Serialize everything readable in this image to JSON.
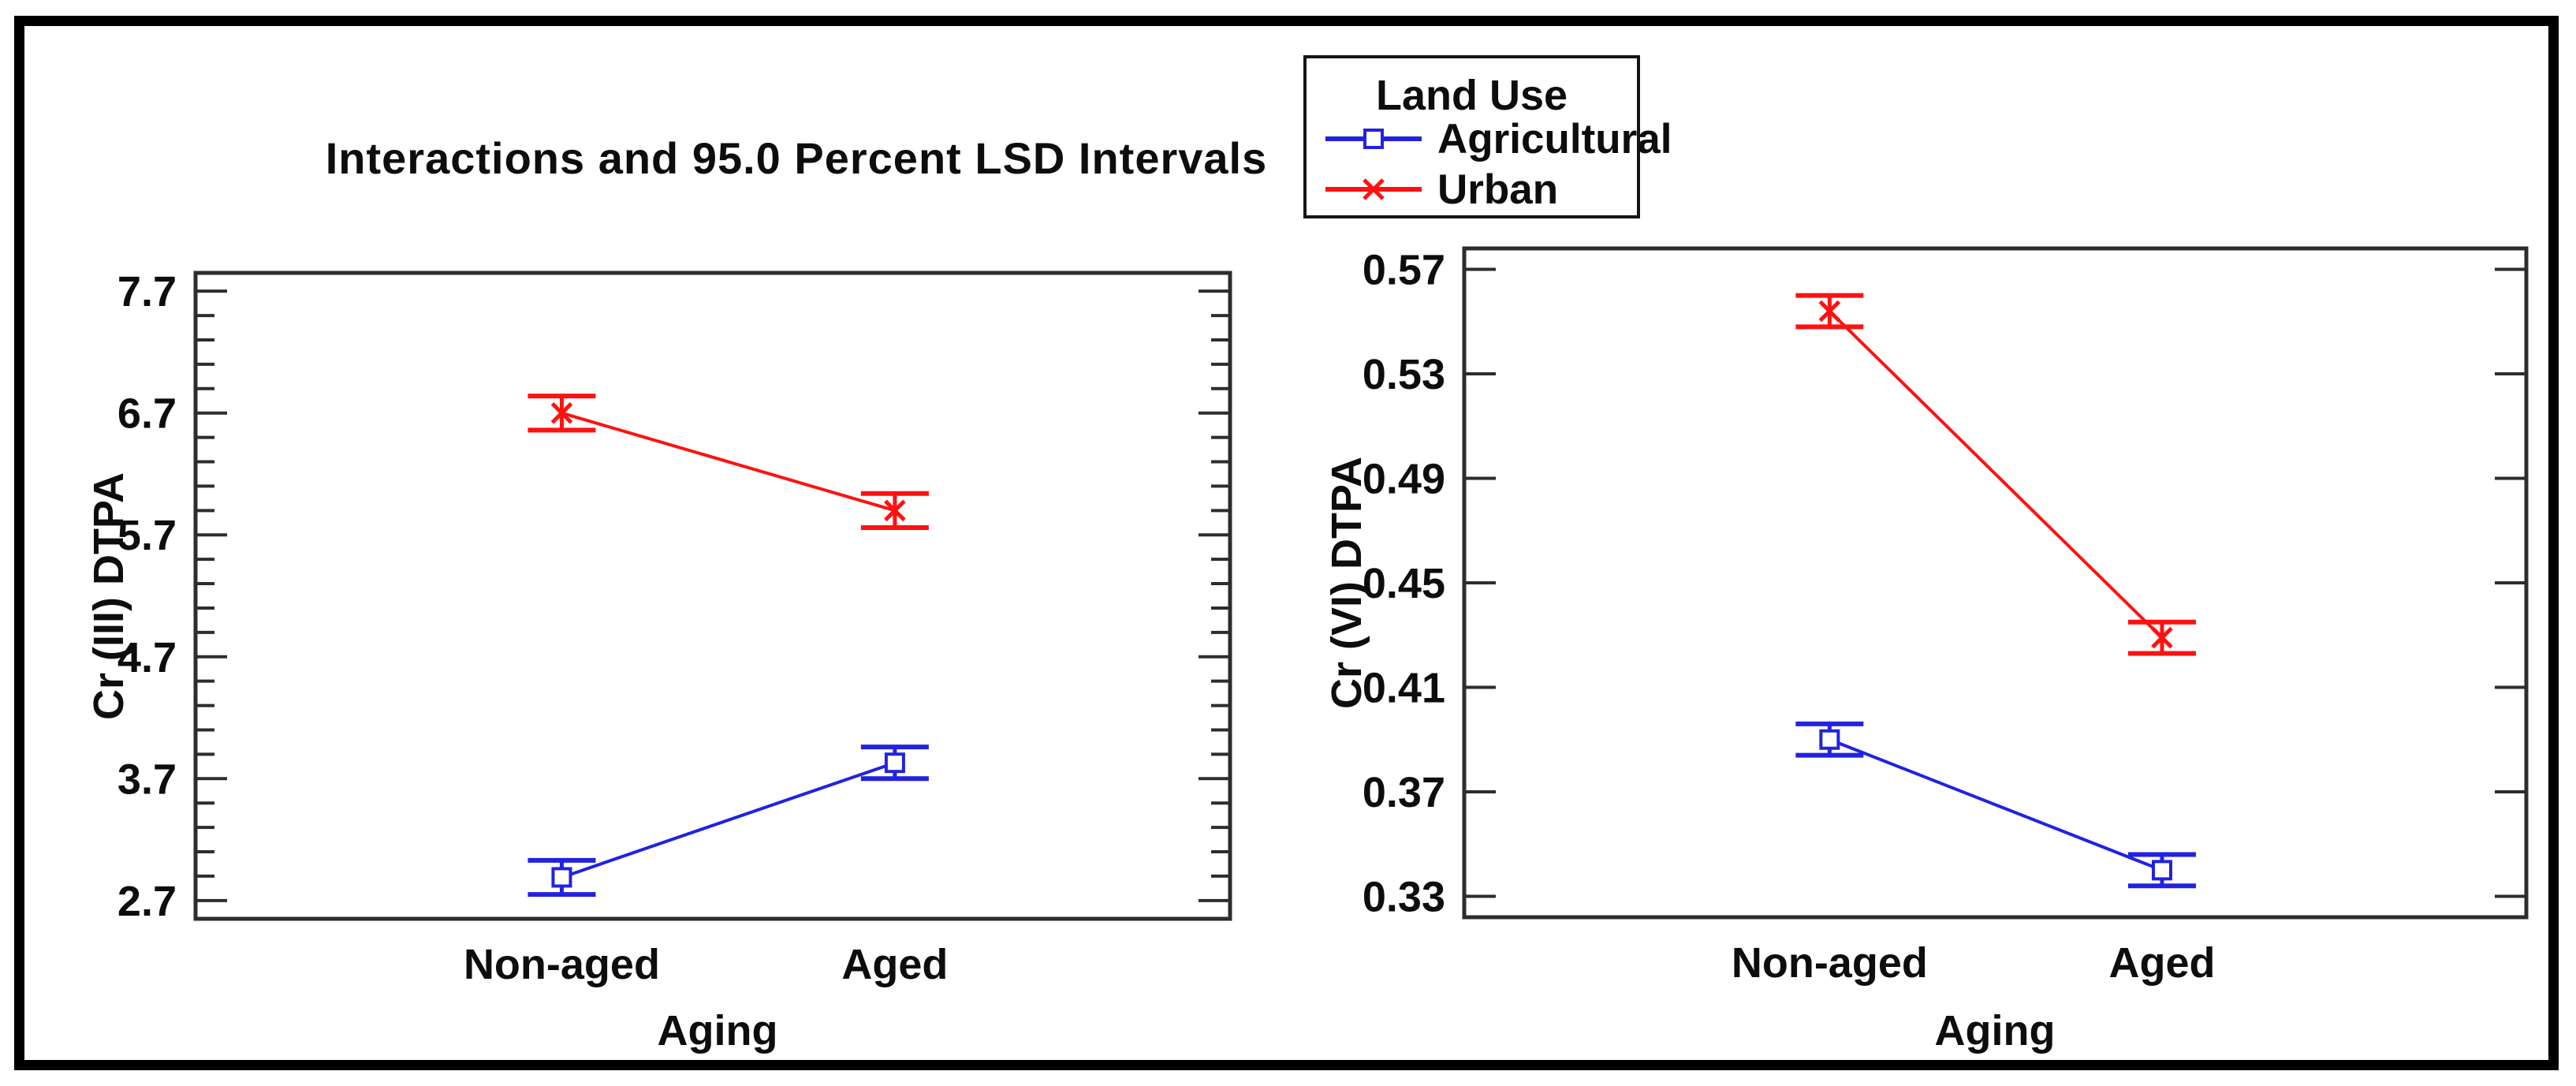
{
  "title": "Interactions and 95.0 Percent LSD Intervals",
  "legend": {
    "title": "Land Use",
    "items": [
      {
        "label": "Agricultural",
        "color": "#2222e0",
        "marker": "square"
      },
      {
        "label": "Urban",
        "color": "#ff1111",
        "marker": "x"
      }
    ]
  },
  "colors": {
    "axis": "#2d2d2d",
    "text": "#0d0d0d",
    "agricultural": "#2222e0",
    "urban": "#ff1111"
  },
  "chart_data": [
    {
      "type": "line",
      "title": "Interactions and 95.0 Percent LSD Intervals",
      "interval_type": "95.0 Percent LSD Intervals",
      "xlabel": "Aging",
      "ylabel": "Cr (III) DTPA",
      "categories": [
        "Non-aged",
        "Aged"
      ],
      "ylim": [
        2.55,
        7.85
      ],
      "yticks": [
        2.7,
        3.7,
        4.7,
        5.7,
        6.7,
        7.7
      ],
      "ytick_decimals": 1,
      "minor_tick_step": 0.2,
      "grid": false,
      "legend_position": "top-center-figure",
      "series": [
        {
          "name": "Agricultural",
          "color": "#2222e0",
          "marker": "square",
          "values": [
            2.89,
            3.83
          ],
          "intervals": [
            [
              2.75,
              3.03
            ],
            [
              3.7,
              3.96
            ]
          ]
        },
        {
          "name": "Urban",
          "color": "#ff1111",
          "marker": "x",
          "values": [
            6.7,
            5.9
          ],
          "intervals": [
            [
              6.56,
              6.84
            ],
            [
              5.76,
              6.04
            ]
          ]
        }
      ]
    },
    {
      "type": "line",
      "title": "",
      "interval_type": "95.0 Percent LSD Intervals",
      "xlabel": "Aging",
      "ylabel": "Cr (VI) DTPA",
      "categories": [
        "Non-aged",
        "Aged"
      ],
      "ylim": [
        0.322,
        0.578
      ],
      "yticks": [
        0.33,
        0.37,
        0.41,
        0.45,
        0.49,
        0.53,
        0.57
      ],
      "ytick_decimals": 2,
      "minor_tick_step": null,
      "grid": false,
      "legend_position": "top-center-figure",
      "series": [
        {
          "name": "Agricultural",
          "color": "#2222e0",
          "marker": "square",
          "values": [
            0.39,
            0.34
          ],
          "intervals": [
            [
              0.384,
              0.396
            ],
            [
              0.334,
              0.346
            ]
          ]
        },
        {
          "name": "Urban",
          "color": "#ff1111",
          "marker": "x",
          "values": [
            0.554,
            0.429
          ],
          "intervals": [
            [
              0.548,
              0.56
            ],
            [
              0.423,
              0.435
            ]
          ]
        }
      ]
    }
  ]
}
